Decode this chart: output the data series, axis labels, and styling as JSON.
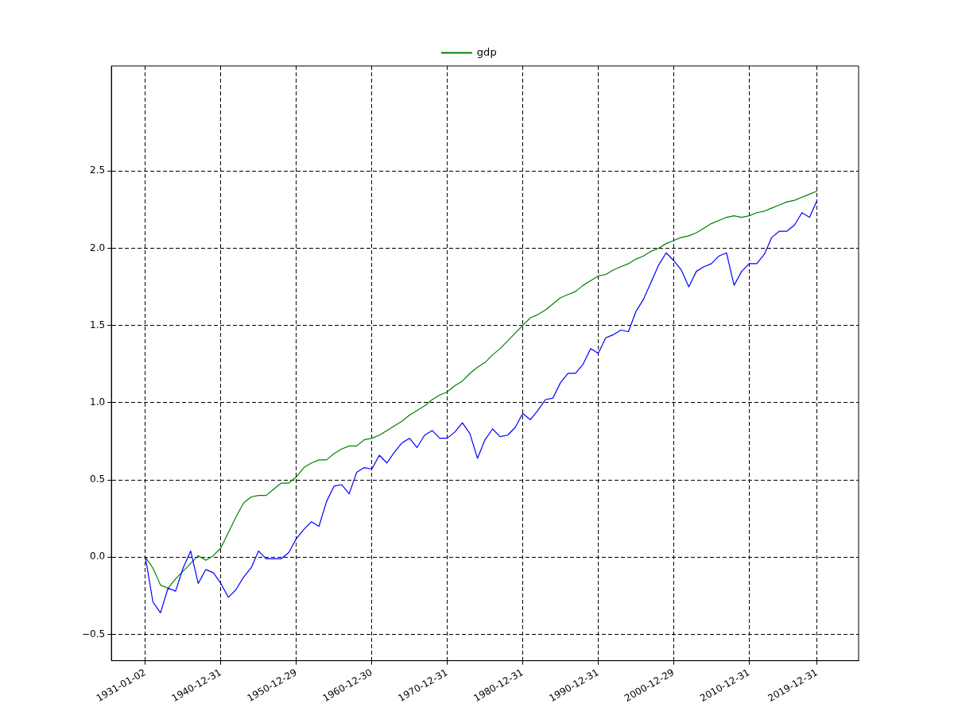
{
  "chart_data": {
    "type": "line",
    "x": [
      "1931-01-02",
      "1931-12-31",
      "1932-12-31",
      "1933-12-31",
      "1934-12-31",
      "1935-12-31",
      "1936-12-31",
      "1937-12-31",
      "1938-12-31",
      "1939-12-31",
      "1940-12-31",
      "1941-12-31",
      "1942-12-31",
      "1943-12-31",
      "1944-12-31",
      "1945-12-31",
      "1946-12-31",
      "1947-12-31",
      "1948-12-31",
      "1949-12-31",
      "1950-12-31",
      "1951-12-31",
      "1952-12-31",
      "1953-12-31",
      "1954-12-31",
      "1955-12-31",
      "1956-12-31",
      "1957-12-31",
      "1958-12-31",
      "1959-12-31",
      "1960-12-31",
      "1961-12-31",
      "1962-12-31",
      "1963-12-31",
      "1964-12-31",
      "1965-12-31",
      "1966-12-31",
      "1967-12-31",
      "1968-12-31",
      "1969-12-31",
      "1970-12-31",
      "1971-12-31",
      "1972-12-31",
      "1973-12-31",
      "1974-12-31",
      "1975-12-31",
      "1976-12-31",
      "1977-12-31",
      "1978-12-31",
      "1979-12-31",
      "1980-12-31",
      "1981-12-31",
      "1982-12-31",
      "1983-12-31",
      "1984-12-31",
      "1985-12-31",
      "1986-12-31",
      "1987-12-31",
      "1988-12-31",
      "1989-12-31",
      "1990-12-31",
      "1991-12-31",
      "1992-12-31",
      "1993-12-31",
      "1994-12-31",
      "1995-12-31",
      "1996-12-31",
      "1997-12-31",
      "1998-12-31",
      "1999-12-31",
      "2000-12-31",
      "2001-12-31",
      "2002-12-31",
      "2003-12-31",
      "2004-12-31",
      "2005-12-31",
      "2006-12-31",
      "2007-12-31",
      "2008-12-31",
      "2009-12-31",
      "2010-12-31",
      "2011-12-31",
      "2012-12-31",
      "2013-12-31",
      "2014-12-31",
      "2015-12-31",
      "2016-12-31",
      "2017-12-31",
      "2018-12-31",
      "2019-12-31"
    ],
    "series": [
      {
        "color": "#0000ff",
        "values": [
          0,
          -0.29,
          -0.36,
          -0.2,
          -0.22,
          -0.07,
          0.04,
          -0.17,
          -0.08,
          -0.1,
          -0.17,
          -0.26,
          -0.21,
          -0.13,
          -0.07,
          0.04,
          -0.01,
          -0.01,
          -0.01,
          0.03,
          0.12,
          0.18,
          0.23,
          0.2,
          0.36,
          0.46,
          0.47,
          0.41,
          0.55,
          0.58,
          0.57,
          0.66,
          0.61,
          0.68,
          0.74,
          0.77,
          0.71,
          0.79,
          0.82,
          0.77,
          0.77,
          0.81,
          0.87,
          0.8,
          0.64,
          0.76,
          0.83,
          0.78,
          0.79,
          0.84,
          0.93,
          0.89,
          0.95,
          1.02,
          1.03,
          1.13,
          1.19,
          1.19,
          1.25,
          1.35,
          1.32,
          1.42,
          1.44,
          1.47,
          1.46,
          1.59,
          1.67,
          1.78,
          1.89,
          1.97,
          1.92,
          1.86,
          1.75,
          1.85,
          1.88,
          1.9,
          1.95,
          1.97,
          1.76,
          1.85,
          1.9,
          1.9,
          1.96,
          2.07,
          2.11,
          2.11,
          2.15,
          2.23,
          2.2,
          2.31
        ]
      },
      {
        "name": "gdp",
        "color": "#008000",
        "values": [
          0,
          -0.07,
          -0.18,
          -0.2,
          -0.14,
          -0.09,
          -0.04,
          0.01,
          -0.02,
          0.01,
          0.06,
          0.16,
          0.26,
          0.35,
          0.39,
          0.4,
          0.4,
          0.44,
          0.48,
          0.48,
          0.52,
          0.58,
          0.61,
          0.63,
          0.63,
          0.67,
          0.7,
          0.72,
          0.72,
          0.76,
          0.77,
          0.79,
          0.82,
          0.85,
          0.88,
          0.92,
          0.95,
          0.98,
          1.02,
          1.05,
          1.07,
          1.11,
          1.14,
          1.19,
          1.23,
          1.26,
          1.31,
          1.35,
          1.4,
          1.45,
          1.5,
          1.55,
          1.57,
          1.6,
          1.64,
          1.68,
          1.7,
          1.72,
          1.76,
          1.79,
          1.82,
          1.83,
          1.86,
          1.88,
          1.9,
          1.93,
          1.95,
          1.98,
          2.0,
          2.03,
          2.05,
          2.07,
          2.08,
          2.1,
          2.13,
          2.16,
          2.18,
          2.2,
          2.21,
          2.2,
          2.21,
          2.23,
          2.24,
          2.26,
          2.28,
          2.3,
          2.31,
          2.33,
          2.35,
          2.37
        ]
      }
    ],
    "xlim": [
      "1926-07-01",
      "2025-07-01"
    ],
    "xticks": [
      "1931-01-02",
      "1940-12-31",
      "1950-12-29",
      "1960-12-30",
      "1970-12-31",
      "1980-12-31",
      "1990-12-31",
      "2000-12-29",
      "2010-12-31",
      "2019-12-31"
    ],
    "ylim": [
      -0.67,
      3.18
    ],
    "yticks": [
      {
        "value": -0.5,
        "label": "−0.5"
      },
      {
        "value": 0,
        "label": "0.0"
      },
      0.5,
      {
        "value": 1,
        "label": "1.0"
      },
      1.5,
      {
        "value": 2,
        "label": "2.0"
      },
      2.5
    ],
    "grid": true,
    "legend": "top",
    "line_style": "solid",
    "marker": "none"
  }
}
